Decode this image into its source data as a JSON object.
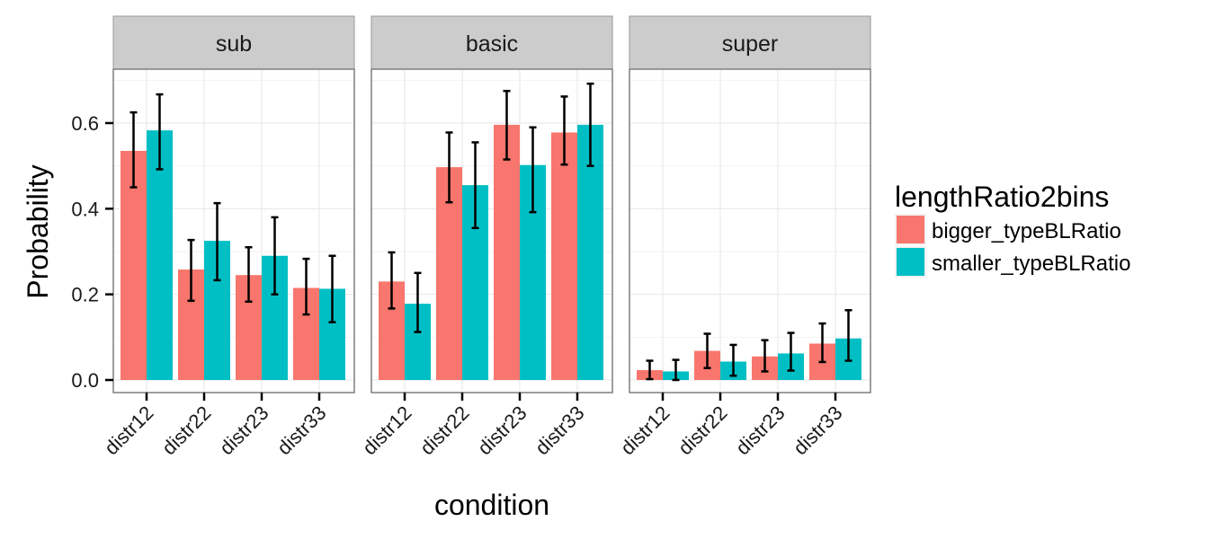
{
  "chart_data": {
    "type": "bar",
    "xlabel": "condition",
    "ylabel": "Probability",
    "ylim": [
      0,
      0.72
    ],
    "yticks": [
      "0.0",
      "0.2",
      "0.4",
      "0.6"
    ],
    "ytick_values": [
      0,
      0.2,
      0.4,
      0.6
    ],
    "categories": [
      "distr12",
      "distr22",
      "distr23",
      "distr33"
    ],
    "grid": true,
    "legend": {
      "title": "lengthRatio2bins",
      "placement": "right",
      "entries": [
        {
          "name": "bigger_typeBLRatio",
          "color": "#F8766D"
        },
        {
          "name": "smaller_typeBLRatio",
          "color": "#00BFC4"
        }
      ]
    },
    "facets": [
      {
        "label": "sub",
        "series": [
          {
            "name": "bigger_typeBLRatio",
            "values": [
              0.535,
              0.258,
              0.245,
              0.215
            ],
            "ci_low": [
              0.45,
              0.185,
              0.183,
              0.153
            ],
            "ci_high": [
              0.625,
              0.327,
              0.31,
              0.283
            ]
          },
          {
            "name": "smaller_typeBLRatio",
            "values": [
              0.583,
              0.325,
              0.29,
              0.213
            ],
            "ci_low": [
              0.492,
              0.233,
              0.2,
              0.135
            ],
            "ci_high": [
              0.667,
              0.413,
              0.38,
              0.29
            ]
          }
        ]
      },
      {
        "label": "basic",
        "series": [
          {
            "name": "bigger_typeBLRatio",
            "values": [
              0.23,
              0.497,
              0.596,
              0.578
            ],
            "ci_low": [
              0.167,
              0.415,
              0.515,
              0.503
            ],
            "ci_high": [
              0.298,
              0.578,
              0.675,
              0.662
            ]
          },
          {
            "name": "smaller_typeBLRatio",
            "values": [
              0.178,
              0.455,
              0.502,
              0.596
            ],
            "ci_low": [
              0.112,
              0.355,
              0.392,
              0.5
            ],
            "ci_high": [
              0.25,
              0.555,
              0.59,
              0.692
            ]
          }
        ]
      },
      {
        "label": "super",
        "series": [
          {
            "name": "bigger_typeBLRatio",
            "values": [
              0.023,
              0.068,
              0.055,
              0.085
            ],
            "ci_low": [
              0.002,
              0.028,
              0.02,
              0.042
            ],
            "ci_high": [
              0.045,
              0.108,
              0.093,
              0.132
            ]
          },
          {
            "name": "smaller_typeBLRatio",
            "values": [
              0.02,
              0.043,
              0.062,
              0.097
            ],
            "ci_low": [
              0.0,
              0.01,
              0.022,
              0.045
            ],
            "ci_high": [
              0.047,
              0.082,
              0.11,
              0.163
            ]
          }
        ]
      }
    ]
  }
}
